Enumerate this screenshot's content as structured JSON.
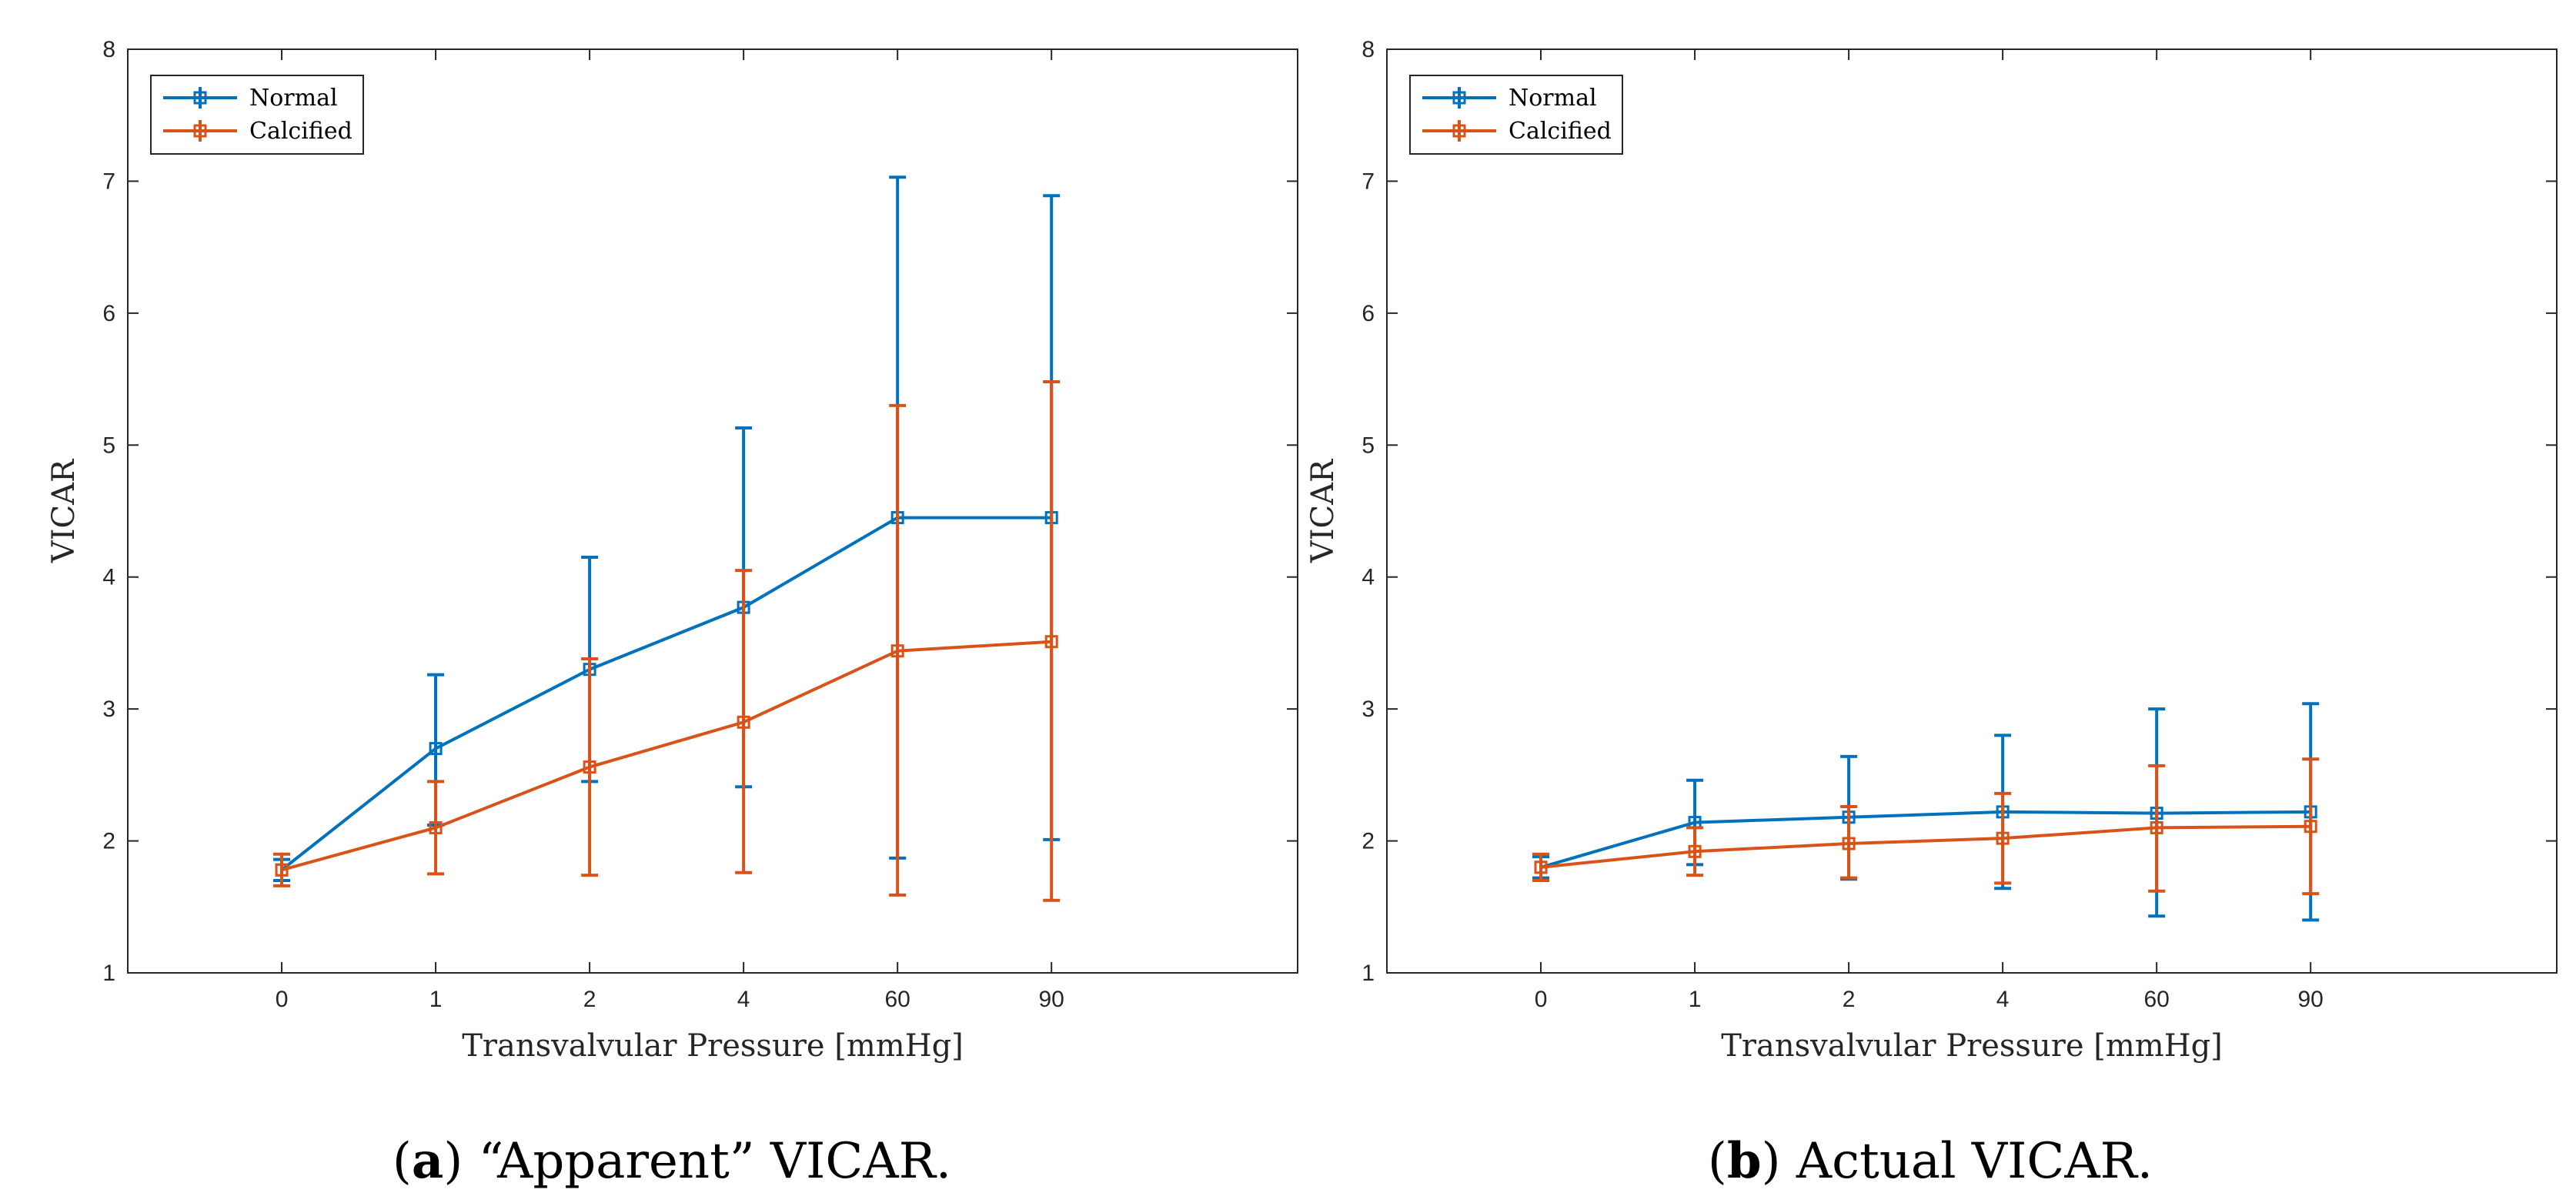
{
  "colors": {
    "normal": "#0072BD",
    "calcified": "#D95319",
    "axis": "#262626"
  },
  "chart_data": [
    {
      "type": "line",
      "caption_label": "a",
      "caption_text": "“Apparent” VICAR.",
      "xlabel": "Transvalvular Pressure [mmHg]",
      "ylabel": "VICAR",
      "categories": [
        "0",
        "1",
        "2",
        "4",
        "60",
        "90"
      ],
      "ylim": [
        1,
        8
      ],
      "yticks": [
        "1",
        "2",
        "3",
        "4",
        "5",
        "6",
        "7",
        "8"
      ],
      "legend_position": "top-left",
      "series": [
        {
          "name": "Normal",
          "color_key": "normal",
          "values": [
            1.78,
            2.7,
            3.3,
            3.77,
            4.45,
            4.45
          ],
          "err_low": [
            1.7,
            2.12,
            2.45,
            2.41,
            1.87,
            2.01
          ],
          "err_high": [
            1.86,
            3.26,
            4.15,
            5.13,
            7.03,
            6.89
          ]
        },
        {
          "name": "Calcified",
          "color_key": "calcified",
          "values": [
            1.78,
            2.1,
            2.56,
            2.9,
            3.44,
            3.51
          ],
          "err_low": [
            1.66,
            1.75,
            1.74,
            1.76,
            1.59,
            1.55
          ],
          "err_high": [
            1.9,
            2.45,
            3.38,
            4.05,
            5.3,
            5.48
          ]
        }
      ]
    },
    {
      "type": "line",
      "caption_label": "b",
      "caption_text": "Actual VICAR.",
      "xlabel": "Transvalvular Pressure [mmHg]",
      "ylabel": "VICAR",
      "categories": [
        "0",
        "1",
        "2",
        "4",
        "60",
        "90"
      ],
      "ylim": [
        1,
        8
      ],
      "yticks": [
        "1",
        "2",
        "3",
        "4",
        "5",
        "6",
        "7",
        "8"
      ],
      "legend_position": "top-left",
      "series": [
        {
          "name": "Normal",
          "color_key": "normal",
          "values": [
            1.8,
            2.14,
            2.18,
            2.22,
            2.21,
            2.22
          ],
          "err_low": [
            1.72,
            1.82,
            1.71,
            1.64,
            1.43,
            1.4
          ],
          "err_high": [
            1.88,
            2.46,
            2.64,
            2.8,
            3.0,
            3.04
          ]
        },
        {
          "name": "Calcified",
          "color_key": "calcified",
          "values": [
            1.8,
            1.92,
            1.98,
            2.02,
            2.1,
            2.11
          ],
          "err_low": [
            1.7,
            1.74,
            1.72,
            1.68,
            1.62,
            1.6
          ],
          "err_high": [
            1.9,
            2.1,
            2.26,
            2.36,
            2.57,
            2.62
          ]
        }
      ]
    }
  ]
}
